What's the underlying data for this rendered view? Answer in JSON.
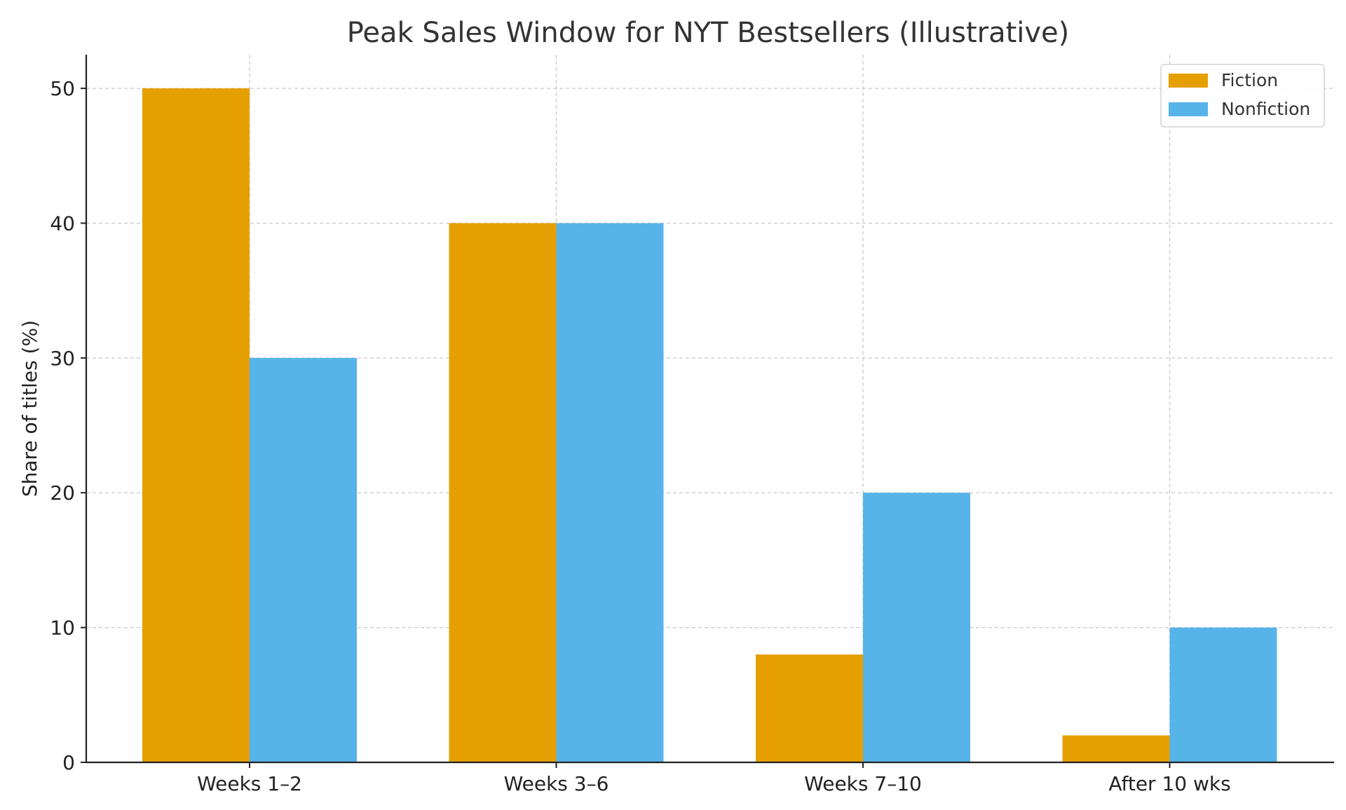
{
  "chart_data": {
    "type": "bar",
    "title": "Peak Sales Window for NYT Bestsellers (Illustrative)",
    "xlabel": "",
    "ylabel": "Share of titles (%)",
    "categories": [
      "Weeks 1–2",
      "Weeks 3–6",
      "Weeks 7–10",
      "After 10 wks"
    ],
    "series": [
      {
        "name": "Fiction",
        "values": [
          50,
          40,
          8,
          2
        ],
        "color": "#E69F00"
      },
      {
        "name": "Nonfiction",
        "values": [
          30,
          40,
          20,
          10
        ],
        "color": "#56B4E9"
      }
    ],
    "ylim": [
      0,
      52.5
    ],
    "yticks": [
      0,
      10,
      20,
      30,
      40,
      50
    ],
    "grid": true,
    "legend_position": "top-right"
  }
}
